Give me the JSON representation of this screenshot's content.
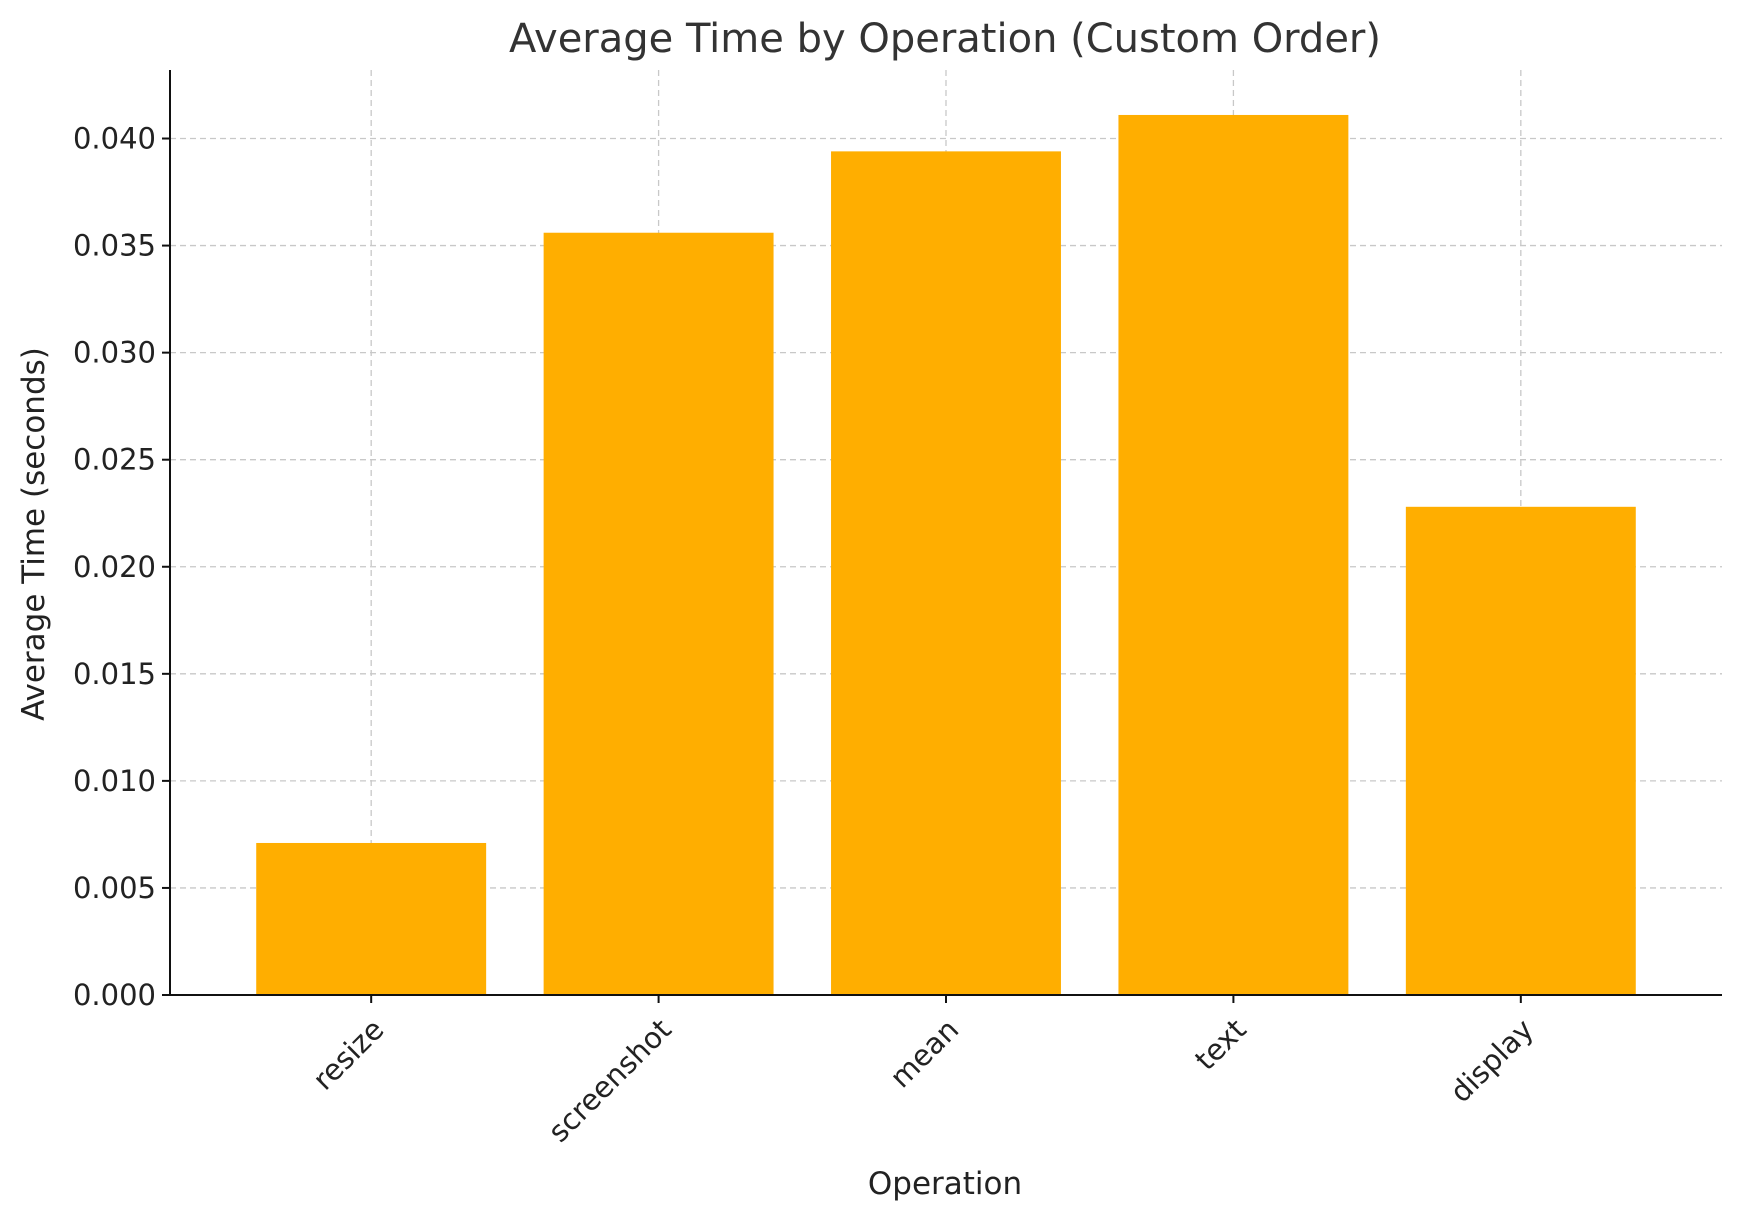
{
  "chart_data": {
    "type": "bar",
    "title": "Average Time by Operation (Custom Order)",
    "xlabel": "Operation",
    "ylabel": "Average Time (seconds)",
    "categories": [
      "resize",
      "screenshot",
      "mean",
      "text",
      "display"
    ],
    "values": [
      0.0071,
      0.0356,
      0.0394,
      0.0411,
      0.0228
    ],
    "ylim": [
      0,
      0.0432
    ],
    "yticks": [
      0.0,
      0.005,
      0.01,
      0.015,
      0.02,
      0.025,
      0.03,
      0.035,
      0.04
    ],
    "ytick_labels": [
      "0.000",
      "0.005",
      "0.010",
      "0.015",
      "0.020",
      "0.025",
      "0.030",
      "0.035",
      "0.040"
    ],
    "grid": true,
    "bar_color": "#FFAE00"
  }
}
